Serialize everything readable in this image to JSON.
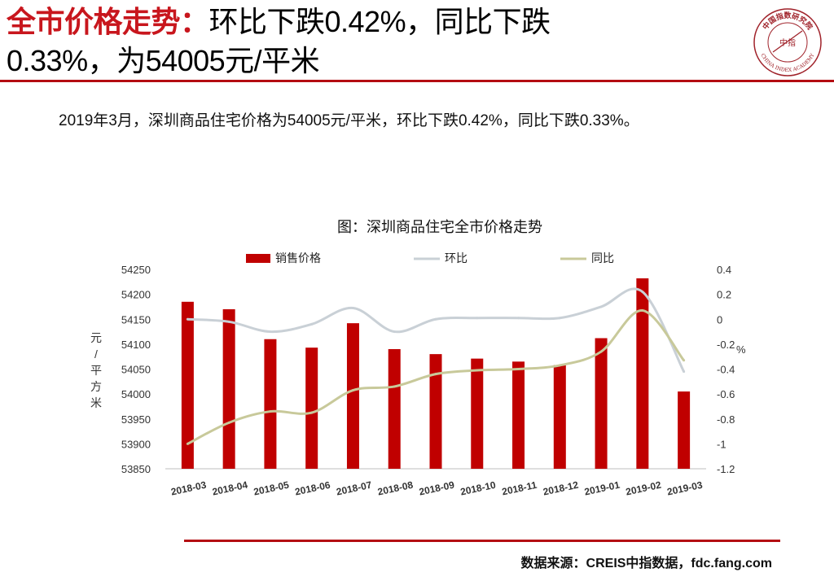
{
  "header": {
    "title_highlight": "全市价格走势：",
    "title_rest_line1": "环比下跌0.42%，同比下跌",
    "title_line2": "0.33%，为54005元/平米"
  },
  "logo": {
    "top_text": "中国指数研究院",
    "center_text": "中指",
    "bottom_text": "CHINA INDEX ACADEMY"
  },
  "summary": "2019年3月，深圳商品住宅价格为54005元/平米，环比下跌0.42%，同比下跌0.33%。",
  "source": "数据来源：CREIS中指数据，fdc.fang.com",
  "colors": {
    "accent": "#c8161d",
    "bar": "#c00000",
    "mom_line": "#c9d0d6",
    "yoy_line": "#c8c99a",
    "axis_text": "#333333"
  },
  "chart_data": {
    "type": "bar",
    "title": "图：深圳商品住宅全市价格走势",
    "categories": [
      "2018-03",
      "2018-04",
      "2018-05",
      "2018-06",
      "2018-07",
      "2018-08",
      "2018-09",
      "2018-10",
      "2018-11",
      "2018-12",
      "2019-01",
      "2019-02",
      "2019-03"
    ],
    "series": [
      {
        "name": "销售价格",
        "kind": "bar",
        "axis": "left",
        "values": [
          54185,
          54170,
          54110,
          54093,
          54142,
          54090,
          54080,
          54071,
          54065,
          54058,
          54112,
          54232,
          54005
        ]
      },
      {
        "name": "环比",
        "kind": "line",
        "axis": "right",
        "values": [
          0,
          -0.02,
          -0.1,
          -0.04,
          0.09,
          -0.1,
          0,
          0.01,
          0.01,
          0.01,
          0.1,
          0.22,
          -0.42
        ]
      },
      {
        "name": "同比",
        "kind": "line",
        "axis": "right",
        "values": [
          -1.0,
          -0.83,
          -0.74,
          -0.75,
          -0.57,
          -0.54,
          -0.44,
          -0.41,
          -0.4,
          -0.37,
          -0.26,
          0.07,
          -0.33
        ]
      }
    ],
    "ylabel": "元/平方米",
    "y2label": "%",
    "ylim": [
      53850,
      54250
    ],
    "yticks": [
      53850,
      53900,
      53950,
      54000,
      54050,
      54100,
      54150,
      54200,
      54250
    ],
    "y2lim": [
      -1.2,
      0.4
    ],
    "y2ticks": [
      0.4,
      0.2,
      0,
      -0.2,
      -0.4,
      -0.6,
      -0.8,
      -1,
      -1.2
    ],
    "legend": "top-center"
  }
}
